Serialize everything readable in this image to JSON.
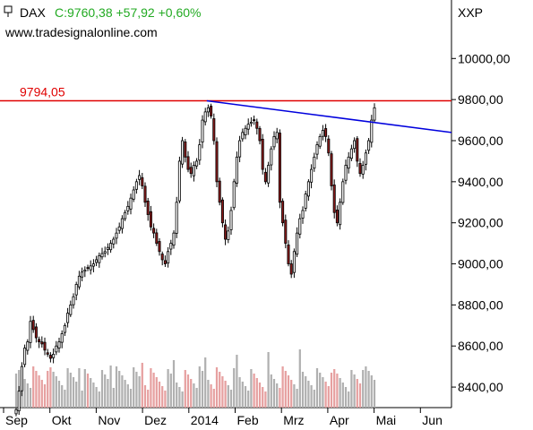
{
  "header": {
    "symbol": "DAX",
    "quote": "C:9760,38 +57,92 +0,60%",
    "source": "www.tradesignalonline.com",
    "exchange": "XXP"
  },
  "colors": {
    "up": "#ffffff",
    "down": "#8b1a1a",
    "wick": "#000000",
    "resistance": "#e00000",
    "trendline": "#0000dd",
    "quote": "#22aa22",
    "volume_up": "#b0b0b0",
    "volume_down": "#e6a0a0"
  },
  "chart_data": {
    "type": "candlestick",
    "ylim": [
      8300,
      10250
    ],
    "y_ticks": [
      {
        "value": 8400,
        "label": "8400,00"
      },
      {
        "value": 8600,
        "label": "8600,00"
      },
      {
        "value": 8800,
        "label": "8800,00"
      },
      {
        "value": 9000,
        "label": "9000,00"
      },
      {
        "value": 9200,
        "label": "9200,00"
      },
      {
        "value": 9400,
        "label": "9400,00"
      },
      {
        "value": 9600,
        "label": "9600,00"
      },
      {
        "value": 9800,
        "label": "9800,00"
      },
      {
        "value": 10000,
        "label": "10000,00"
      }
    ],
    "x_ticks": [
      "Sep",
      "Okt",
      "Nov",
      "Dez",
      "2014",
      "Feb",
      "Mrz",
      "Apr",
      "Mai",
      "Jun"
    ],
    "resistance": {
      "value": 9794.05,
      "label": "9794,05"
    },
    "trendline": {
      "from": {
        "month": "Dez",
        "value": 9794
      },
      "to": {
        "month": "Jun",
        "value": 9640
      }
    },
    "closes": [
      8290,
      8380,
      8500,
      8590,
      8620,
      8720,
      8680,
      8640,
      8620,
      8610,
      8580,
      8560,
      8540,
      8560,
      8600,
      8620,
      8660,
      8700,
      8760,
      8800,
      8840,
      8900,
      8940,
      8960,
      8970,
      8980,
      8990,
      9000,
      9020,
      9040,
      9050,
      9060,
      9080,
      9100,
      9120,
      9150,
      9180,
      9220,
      9250,
      9280,
      9320,
      9360,
      9400,
      9430,
      9380,
      9300,
      9240,
      9180,
      9150,
      9100,
      9060,
      9020,
      9000,
      9060,
      9100,
      9150,
      9300,
      9500,
      9600,
      9520,
      9460,
      9440,
      9480,
      9500,
      9580,
      9700,
      9740,
      9760,
      9720,
      9600,
      9400,
      9300,
      9200,
      9120,
      9160,
      9260,
      9400,
      9520,
      9600,
      9640,
      9660,
      9680,
      9690,
      9700,
      9660,
      9600,
      9460,
      9400,
      9480,
      9560,
      9620,
      9640,
      9300,
      9200,
      9100,
      9000,
      8950,
      9060,
      9150,
      9220,
      9260,
      9340,
      9400,
      9460,
      9520,
      9580,
      9620,
      9650,
      9620,
      9540,
      9380,
      9250,
      9200,
      9300,
      9400,
      9480,
      9520,
      9560,
      9600,
      9500,
      9440,
      9480,
      9540,
      9600,
      9700,
      9760
    ]
  }
}
